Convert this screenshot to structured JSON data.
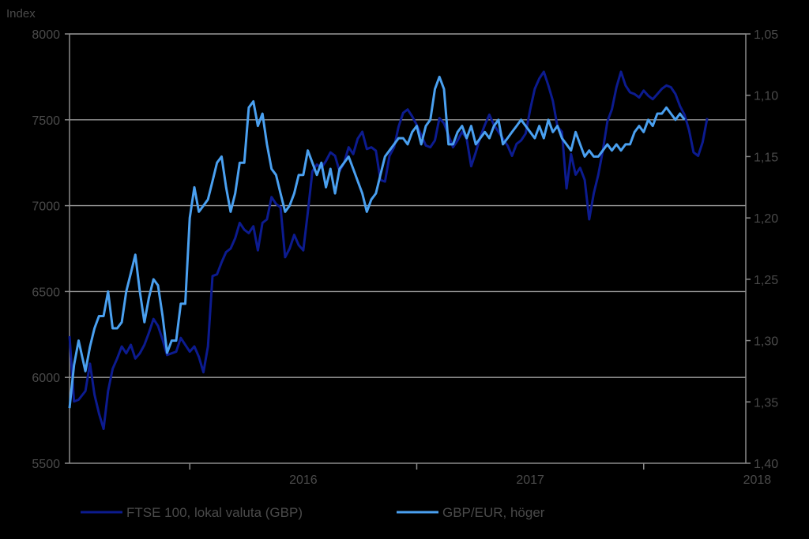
{
  "chart_data": {
    "type": "line",
    "ylabel_left": "Index",
    "ylim_left": [
      5500,
      8000
    ],
    "yticks_left": [
      "5500",
      "6000",
      "6500",
      "7000",
      "7500",
      "8000"
    ],
    "ylim_right": [
      1.05,
      1.4
    ],
    "right_axis_inverted": true,
    "yticks_right": [
      "1,40",
      "1,35",
      "1,30",
      "1,25",
      "1,20",
      "1,15",
      "1,10",
      "1,05"
    ],
    "xlim": [
      2015.47,
      2018.45
    ],
    "x_labels": [
      "2016",
      "2017",
      "2018"
    ],
    "grid": true,
    "legend_position": "bottom",
    "series": [
      {
        "name": "FTSE 100, lokal valuta (GBP)",
        "axis": "left",
        "color": "#0c1b8f",
        "points": [
          [
            2015.47,
            6240
          ],
          [
            2015.49,
            5860
          ],
          [
            2015.51,
            5870
          ],
          [
            2015.54,
            5920
          ],
          [
            2015.56,
            6080
          ],
          [
            2015.58,
            5900
          ],
          [
            2015.6,
            5790
          ],
          [
            2015.62,
            5700
          ],
          [
            2015.64,
            5920
          ],
          [
            2015.66,
            6050
          ],
          [
            2015.68,
            6110
          ],
          [
            2015.7,
            6180
          ],
          [
            2015.72,
            6140
          ],
          [
            2015.74,
            6190
          ],
          [
            2015.76,
            6110
          ],
          [
            2015.78,
            6140
          ],
          [
            2015.8,
            6190
          ],
          [
            2015.82,
            6260
          ],
          [
            2015.84,
            6340
          ],
          [
            2015.86,
            6300
          ],
          [
            2015.88,
            6220
          ],
          [
            2015.9,
            6130
          ],
          [
            2015.92,
            6140
          ],
          [
            2015.94,
            6150
          ],
          [
            2015.96,
            6230
          ],
          [
            2015.98,
            6190
          ],
          [
            2016.0,
            6150
          ],
          [
            2016.02,
            6180
          ],
          [
            2016.04,
            6120
          ],
          [
            2016.06,
            6030
          ],
          [
            2016.08,
            6180
          ],
          [
            2016.1,
            6590
          ],
          [
            2016.12,
            6600
          ],
          [
            2016.14,
            6670
          ],
          [
            2016.16,
            6730
          ],
          [
            2016.18,
            6750
          ],
          [
            2016.2,
            6810
          ],
          [
            2016.22,
            6900
          ],
          [
            2016.24,
            6860
          ],
          [
            2016.26,
            6840
          ],
          [
            2016.28,
            6880
          ],
          [
            2016.3,
            6740
          ],
          [
            2016.32,
            6900
          ],
          [
            2016.34,
            6920
          ],
          [
            2016.36,
            7050
          ],
          [
            2016.38,
            7010
          ],
          [
            2016.4,
            6990
          ],
          [
            2016.42,
            6700
          ],
          [
            2016.44,
            6750
          ],
          [
            2016.46,
            6830
          ],
          [
            2016.48,
            6770
          ],
          [
            2016.5,
            6740
          ],
          [
            2016.52,
            6960
          ],
          [
            2016.54,
            7200
          ],
          [
            2016.56,
            7240
          ],
          [
            2016.58,
            7220
          ],
          [
            2016.6,
            7260
          ],
          [
            2016.62,
            7310
          ],
          [
            2016.64,
            7290
          ],
          [
            2016.66,
            7200
          ],
          [
            2016.68,
            7250
          ],
          [
            2016.7,
            7340
          ],
          [
            2016.72,
            7300
          ],
          [
            2016.74,
            7390
          ],
          [
            2016.76,
            7430
          ],
          [
            2016.78,
            7330
          ],
          [
            2016.8,
            7340
          ],
          [
            2016.82,
            7320
          ],
          [
            2016.84,
            7150
          ],
          [
            2016.86,
            7140
          ],
          [
            2016.88,
            7290
          ],
          [
            2016.9,
            7340
          ],
          [
            2016.92,
            7460
          ],
          [
            2016.94,
            7540
          ],
          [
            2016.96,
            7560
          ],
          [
            2016.98,
            7520
          ],
          [
            2017.0,
            7470
          ],
          [
            2017.02,
            7410
          ],
          [
            2017.04,
            7350
          ],
          [
            2017.06,
            7340
          ],
          [
            2017.08,
            7380
          ],
          [
            2017.1,
            7510
          ],
          [
            2017.12,
            7480
          ],
          [
            2017.14,
            7410
          ],
          [
            2017.16,
            7340
          ],
          [
            2017.18,
            7380
          ],
          [
            2017.2,
            7430
          ],
          [
            2017.22,
            7390
          ],
          [
            2017.24,
            7230
          ],
          [
            2017.26,
            7310
          ],
          [
            2017.28,
            7400
          ],
          [
            2017.3,
            7470
          ],
          [
            2017.32,
            7530
          ],
          [
            2017.34,
            7470
          ],
          [
            2017.36,
            7430
          ],
          [
            2017.38,
            7390
          ],
          [
            2017.4,
            7350
          ],
          [
            2017.42,
            7290
          ],
          [
            2017.44,
            7360
          ],
          [
            2017.46,
            7380
          ],
          [
            2017.48,
            7420
          ],
          [
            2017.5,
            7560
          ],
          [
            2017.52,
            7680
          ],
          [
            2017.54,
            7740
          ],
          [
            2017.56,
            7780
          ],
          [
            2017.58,
            7700
          ],
          [
            2017.6,
            7610
          ],
          [
            2017.62,
            7460
          ],
          [
            2017.64,
            7430
          ],
          [
            2017.66,
            7100
          ],
          [
            2017.68,
            7300
          ],
          [
            2017.7,
            7180
          ],
          [
            2017.72,
            7220
          ],
          [
            2017.74,
            7150
          ],
          [
            2017.76,
            6920
          ],
          [
            2017.78,
            7070
          ],
          [
            2017.8,
            7180
          ],
          [
            2017.82,
            7320
          ],
          [
            2017.84,
            7490
          ],
          [
            2017.86,
            7560
          ],
          [
            2017.88,
            7690
          ],
          [
            2017.9,
            7780
          ],
          [
            2017.92,
            7700
          ],
          [
            2017.94,
            7660
          ],
          [
            2017.96,
            7650
          ],
          [
            2017.98,
            7630
          ],
          [
            2018.0,
            7670
          ],
          [
            2018.02,
            7640
          ],
          [
            2018.04,
            7620
          ],
          [
            2018.06,
            7650
          ],
          [
            2018.08,
            7680
          ],
          [
            2018.1,
            7700
          ],
          [
            2018.12,
            7690
          ],
          [
            2018.14,
            7650
          ],
          [
            2018.16,
            7580
          ],
          [
            2018.18,
            7530
          ],
          [
            2018.2,
            7440
          ],
          [
            2018.22,
            7310
          ],
          [
            2018.24,
            7290
          ],
          [
            2018.26,
            7370
          ],
          [
            2018.28,
            7510
          ]
        ]
      },
      {
        "name": "GBP/EUR, höger",
        "axis": "right",
        "color": "#4aa0f0",
        "points": [
          [
            2015.47,
            1.355
          ],
          [
            2015.49,
            1.32
          ],
          [
            2015.51,
            1.3
          ],
          [
            2015.54,
            1.325
          ],
          [
            2015.56,
            1.305
          ],
          [
            2015.58,
            1.29
          ],
          [
            2015.6,
            1.28
          ],
          [
            2015.62,
            1.28
          ],
          [
            2015.64,
            1.26
          ],
          [
            2015.66,
            1.29
          ],
          [
            2015.68,
            1.29
          ],
          [
            2015.7,
            1.285
          ],
          [
            2015.72,
            1.26
          ],
          [
            2015.74,
            1.245
          ],
          [
            2015.76,
            1.23
          ],
          [
            2015.78,
            1.26
          ],
          [
            2015.8,
            1.285
          ],
          [
            2015.82,
            1.265
          ],
          [
            2015.84,
            1.25
          ],
          [
            2015.86,
            1.255
          ],
          [
            2015.88,
            1.28
          ],
          [
            2015.9,
            1.31
          ],
          [
            2015.92,
            1.3
          ],
          [
            2015.94,
            1.3
          ],
          [
            2015.96,
            1.27
          ],
          [
            2015.98,
            1.27
          ],
          [
            2016.0,
            1.2
          ],
          [
            2016.02,
            1.175
          ],
          [
            2016.04,
            1.195
          ],
          [
            2016.06,
            1.19
          ],
          [
            2016.08,
            1.185
          ],
          [
            2016.1,
            1.17
          ],
          [
            2016.12,
            1.155
          ],
          [
            2016.14,
            1.15
          ],
          [
            2016.16,
            1.175
          ],
          [
            2016.18,
            1.195
          ],
          [
            2016.2,
            1.18
          ],
          [
            2016.22,
            1.155
          ],
          [
            2016.24,
            1.155
          ],
          [
            2016.26,
            1.11
          ],
          [
            2016.28,
            1.105
          ],
          [
            2016.3,
            1.125
          ],
          [
            2016.32,
            1.115
          ],
          [
            2016.34,
            1.14
          ],
          [
            2016.36,
            1.16
          ],
          [
            2016.38,
            1.165
          ],
          [
            2016.4,
            1.18
          ],
          [
            2016.42,
            1.195
          ],
          [
            2016.44,
            1.19
          ],
          [
            2016.46,
            1.18
          ],
          [
            2016.48,
            1.165
          ],
          [
            2016.5,
            1.165
          ],
          [
            2016.52,
            1.145
          ],
          [
            2016.54,
            1.155
          ],
          [
            2016.56,
            1.165
          ],
          [
            2016.58,
            1.155
          ],
          [
            2016.6,
            1.175
          ],
          [
            2016.62,
            1.16
          ],
          [
            2016.64,
            1.18
          ],
          [
            2016.66,
            1.16
          ],
          [
            2016.68,
            1.155
          ],
          [
            2016.7,
            1.15
          ],
          [
            2016.72,
            1.16
          ],
          [
            2016.74,
            1.17
          ],
          [
            2016.76,
            1.18
          ],
          [
            2016.78,
            1.195
          ],
          [
            2016.8,
            1.185
          ],
          [
            2016.82,
            1.18
          ],
          [
            2016.84,
            1.165
          ],
          [
            2016.86,
            1.15
          ],
          [
            2016.88,
            1.145
          ],
          [
            2016.9,
            1.14
          ],
          [
            2016.92,
            1.135
          ],
          [
            2016.94,
            1.135
          ],
          [
            2016.96,
            1.14
          ],
          [
            2016.98,
            1.13
          ],
          [
            2017.0,
            1.125
          ],
          [
            2017.02,
            1.14
          ],
          [
            2017.04,
            1.125
          ],
          [
            2017.06,
            1.12
          ],
          [
            2017.08,
            1.095
          ],
          [
            2017.1,
            1.085
          ],
          [
            2017.12,
            1.095
          ],
          [
            2017.14,
            1.14
          ],
          [
            2017.16,
            1.14
          ],
          [
            2017.18,
            1.13
          ],
          [
            2017.2,
            1.125
          ],
          [
            2017.22,
            1.135
          ],
          [
            2017.24,
            1.125
          ],
          [
            2017.26,
            1.14
          ],
          [
            2017.28,
            1.135
          ],
          [
            2017.3,
            1.13
          ],
          [
            2017.32,
            1.135
          ],
          [
            2017.34,
            1.125
          ],
          [
            2017.36,
            1.12
          ],
          [
            2017.38,
            1.14
          ],
          [
            2017.4,
            1.135
          ],
          [
            2017.42,
            1.13
          ],
          [
            2017.44,
            1.125
          ],
          [
            2017.46,
            1.12
          ],
          [
            2017.48,
            1.125
          ],
          [
            2017.5,
            1.13
          ],
          [
            2017.52,
            1.135
          ],
          [
            2017.54,
            1.125
          ],
          [
            2017.56,
            1.135
          ],
          [
            2017.58,
            1.12
          ],
          [
            2017.6,
            1.13
          ],
          [
            2017.62,
            1.125
          ],
          [
            2017.64,
            1.135
          ],
          [
            2017.66,
            1.14
          ],
          [
            2017.68,
            1.145
          ],
          [
            2017.7,
            1.13
          ],
          [
            2017.72,
            1.14
          ],
          [
            2017.74,
            1.15
          ],
          [
            2017.76,
            1.145
          ],
          [
            2017.78,
            1.15
          ],
          [
            2017.8,
            1.15
          ],
          [
            2017.82,
            1.145
          ],
          [
            2017.84,
            1.14
          ],
          [
            2017.86,
            1.145
          ],
          [
            2017.88,
            1.14
          ],
          [
            2017.9,
            1.145
          ],
          [
            2017.92,
            1.14
          ],
          [
            2017.94,
            1.14
          ],
          [
            2017.96,
            1.13
          ],
          [
            2017.98,
            1.125
          ],
          [
            2018.0,
            1.13
          ],
          [
            2018.02,
            1.12
          ],
          [
            2018.04,
            1.125
          ],
          [
            2018.06,
            1.115
          ],
          [
            2018.08,
            1.115
          ],
          [
            2018.1,
            1.11
          ],
          [
            2018.12,
            1.115
          ],
          [
            2018.14,
            1.12
          ],
          [
            2018.16,
            1.115
          ],
          [
            2018.18,
            1.12
          ]
        ]
      }
    ]
  }
}
